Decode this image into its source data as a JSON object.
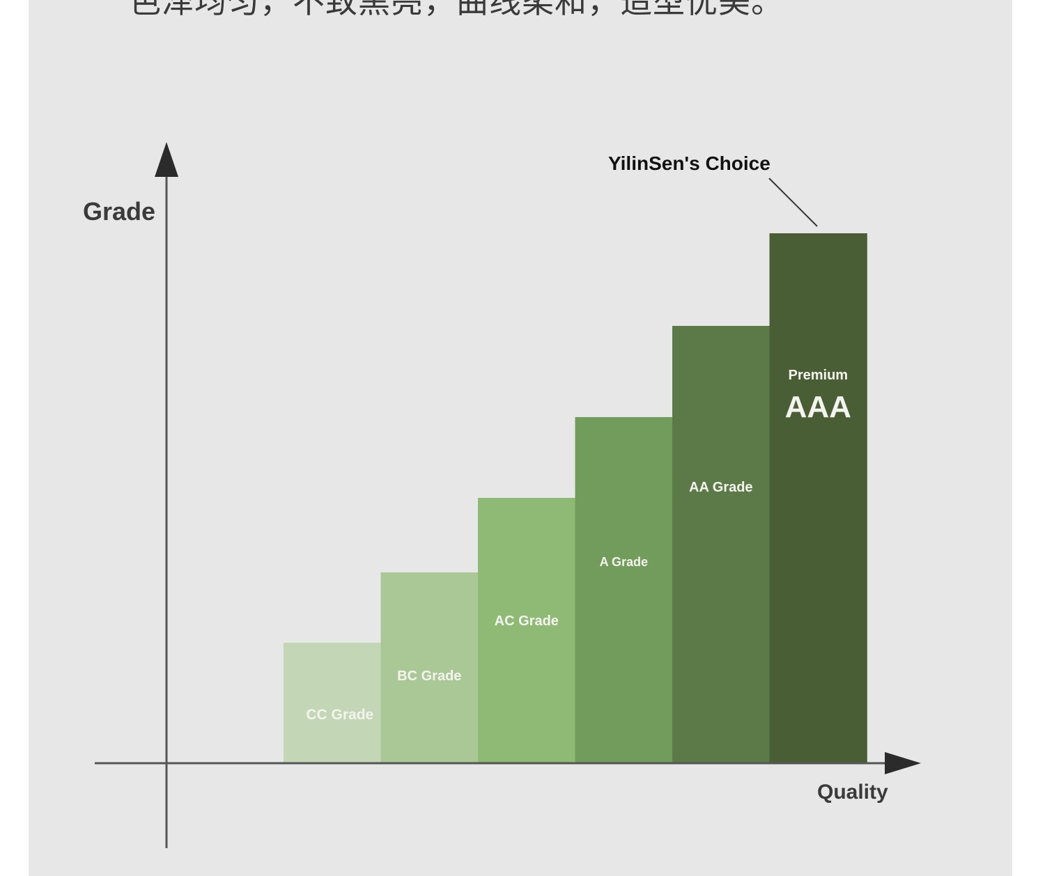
{
  "header": {
    "caption": "色泽均匀，不致黑亮，曲线柔和，造型优美。"
  },
  "chart_data": {
    "type": "bar",
    "xlabel": "Quality",
    "ylabel": "Grade",
    "categories": [
      "CC Grade",
      "BC Grade",
      "AC Grade",
      "A Grade",
      "AA Grade",
      "Premium AAA"
    ],
    "values": [
      1,
      2,
      3,
      4,
      5,
      6
    ],
    "ylim": [
      0,
      6
    ],
    "bars": [
      {
        "label": "CC Grade",
        "value": 1,
        "color": "#c3d6b5"
      },
      {
        "label": "BC Grade",
        "value": 2,
        "color": "#a9c895"
      },
      {
        "label": "AC Grade",
        "value": 3,
        "color": "#8fba75"
      },
      {
        "label": "A Grade",
        "value": 4,
        "color": "#729c5c"
      },
      {
        "label": "AA Grade",
        "value": 5,
        "color": "#5c7a48"
      },
      {
        "label": "Premium",
        "sublabel": "AAA",
        "value": 6,
        "color": "#4a5e35"
      }
    ],
    "annotation": "YilinSen's Choice",
    "grid": false,
    "legend": "none"
  }
}
